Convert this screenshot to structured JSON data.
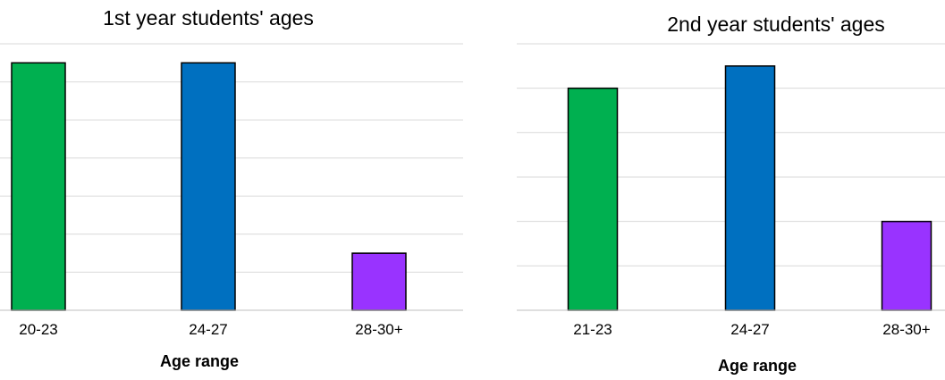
{
  "charts": [
    {
      "chart_data": {
        "type": "bar",
        "title": "1st year students' ages",
        "xlabel": "Age range",
        "ylabel": "",
        "categories": [
          "20-23",
          "24-27",
          "28-30+"
        ],
        "values": [
          6.5,
          6.5,
          1.5
        ],
        "colors": [
          "#00b050",
          "#0070c0",
          "#9933ff"
        ],
        "ylim": [
          0,
          7
        ],
        "grid_step": 1,
        "grid": true,
        "legend": "none"
      }
    },
    {
      "chart_data": {
        "type": "bar",
        "title": "2nd year students' ages",
        "xlabel": "Age range",
        "ylabel": "",
        "categories": [
          "21-23",
          "24-27",
          "28-30+"
        ],
        "values": [
          5,
          5.5,
          2
        ],
        "colors": [
          "#00b050",
          "#0070c0",
          "#9933ff"
        ],
        "ylim": [
          0,
          6
        ],
        "grid_step": 1,
        "grid": true,
        "legend": "none"
      }
    }
  ]
}
